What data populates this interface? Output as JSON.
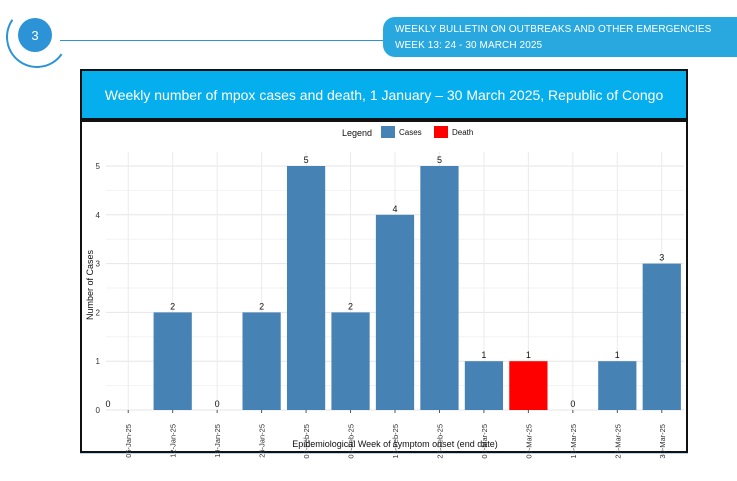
{
  "header": {
    "page_number": "3",
    "bulletin_line1": "WEEKLY BULLETIN ON OUTBREAKS AND OTHER EMERGENCIES",
    "bulletin_line2": "WEEK 13: 24 - 30 MARCH 2025"
  },
  "figure": {
    "title": "Weekly number of mpox cases and death, 1 January – 30 March 2025, Republic of Congo"
  },
  "colors": {
    "cases": "#4682b4",
    "death": "#ff0000",
    "accent": "#2b93d6",
    "title_bar": "#05aeec"
  },
  "chart_data": {
    "type": "bar",
    "title": "Weekly number of mpox cases and death, 1 January – 30 March 2025, Republic of Congo",
    "xlabel": "Epidemiological Week of symptom onset (end date)",
    "ylabel": "Number of Cases",
    "ylim": [
      0,
      5.2
    ],
    "yticks": [
      0,
      1,
      2,
      3,
      4,
      5
    ],
    "grid": true,
    "legend_title": "Legend",
    "legend_position": "top",
    "legend": [
      {
        "label": "Cases",
        "color": "#4682b4"
      },
      {
        "label": "Death",
        "color": "#ff0000"
      }
    ],
    "categories": [
      "05-Jan-25",
      "12-Jan-25",
      "19-Jan-25",
      "26-Jan-25",
      "02-Feb-25",
      "09-Feb-25",
      "16-Feb-25",
      "23-Feb-25",
      "02-Mar-25",
      "09-Mar-25",
      "16-Mar-25",
      "23-Mar-25",
      "30-Mar-25"
    ],
    "values": [
      0,
      2,
      0,
      2,
      5,
      2,
      4,
      5,
      1,
      1,
      0,
      1,
      3
    ],
    "series_type": [
      "Cases",
      "Cases",
      "Cases",
      "Cases",
      "Cases",
      "Cases",
      "Cases",
      "Cases",
      "Cases",
      "Death",
      "Cases",
      "Cases",
      "Cases"
    ],
    "data_labels": [
      "0",
      "2",
      "0",
      "2",
      "5",
      "2",
      "4",
      "5",
      "1",
      "1",
      "0",
      "1",
      "3"
    ]
  }
}
